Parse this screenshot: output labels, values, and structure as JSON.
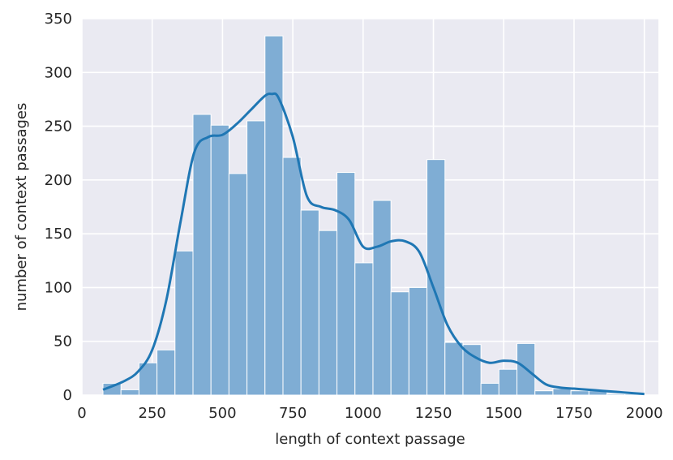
{
  "chart_data": {
    "type": "bar",
    "subtype": "histogram-with-kde",
    "title": "",
    "xlabel": "length of context passage",
    "ylabel": "number of context passages",
    "xlim": [
      0,
      2050
    ],
    "ylim": [
      0,
      350
    ],
    "x_ticks": [
      0,
      250,
      500,
      750,
      1000,
      1250,
      1500,
      1750,
      2000
    ],
    "y_ticks": [
      0,
      50,
      100,
      150,
      200,
      250,
      300,
      350
    ],
    "grid": true,
    "background": "#eaeaf2",
    "bar_color": "#7fadd4",
    "line_color": "#1f77b4",
    "bins": {
      "edges": [
        75,
        139,
        203,
        267,
        331,
        395,
        459,
        523,
        587,
        651,
        715,
        779,
        843,
        907,
        971,
        1035,
        1099,
        1163,
        1227,
        1291,
        1355,
        1419,
        1483,
        1547,
        1611,
        1675,
        1739,
        1803,
        1867,
        1931,
        1995
      ],
      "counts": [
        11,
        5,
        30,
        42,
        134,
        261,
        251,
        206,
        255,
        334,
        221,
        172,
        153,
        207,
        123,
        181,
        96,
        100,
        219,
        49,
        47,
        11,
        24,
        48,
        4,
        6,
        4,
        4,
        1,
        1
      ]
    },
    "kde": {
      "x": [
        75,
        150,
        200,
        250,
        300,
        350,
        400,
        450,
        500,
        550,
        600,
        650,
        675,
        700,
        750,
        800,
        850,
        900,
        950,
        1000,
        1050,
        1100,
        1150,
        1200,
        1250,
        1300,
        1350,
        1400,
        1450,
        1500,
        1550,
        1600,
        1650,
        1700,
        1750,
        1800,
        1850,
        1900,
        1950,
        2000
      ],
      "y": [
        5,
        13,
        22,
        42,
        88,
        160,
        226,
        240,
        242,
        252,
        265,
        278,
        280,
        276,
        240,
        185,
        175,
        172,
        163,
        138,
        138,
        143,
        143,
        133,
        100,
        65,
        45,
        35,
        30,
        32,
        30,
        20,
        10,
        7,
        6,
        5,
        4,
        3,
        2,
        1
      ]
    }
  }
}
